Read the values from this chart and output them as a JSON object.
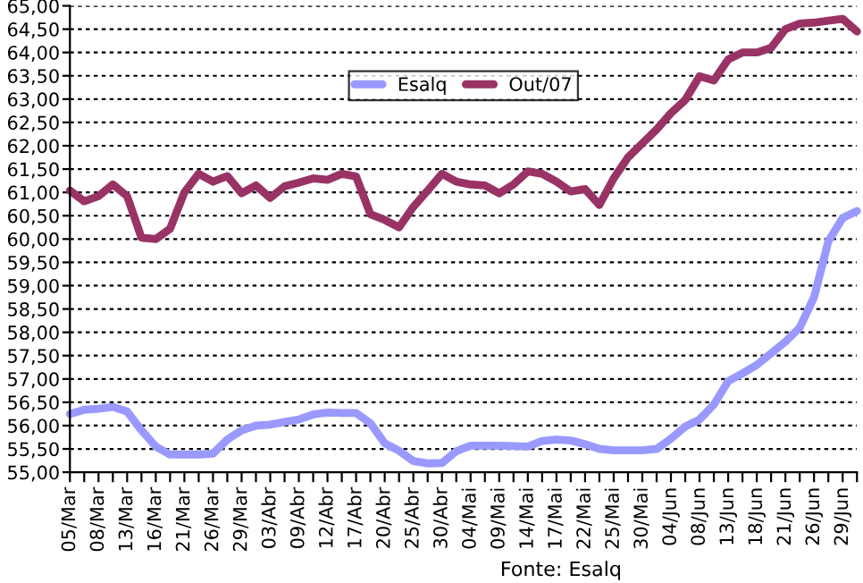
{
  "chart_data": {
    "type": "line",
    "categories": [
      "05/Mar",
      null,
      "08/Mar",
      null,
      "13/Mar",
      null,
      "16/Mar",
      null,
      "21/Mar",
      null,
      "26/Mar",
      null,
      "29/Mar",
      null,
      "03/Abr",
      null,
      "09/Abr",
      null,
      "12/Abr",
      null,
      "17/Abr",
      null,
      "20/Abr",
      null,
      "25/Abr",
      null,
      "30/Abr",
      null,
      "04/Mai",
      null,
      "09/Mai",
      null,
      "14/Mai",
      null,
      "17/Mai",
      null,
      "22/Mai",
      null,
      "25/Mai",
      null,
      "30/Mai",
      null,
      "04/Jun",
      null,
      "08/Jun",
      null,
      "13/Jun",
      null,
      "18/Jun",
      null,
      "21/Jun",
      null,
      "26/Jun",
      null,
      "29/Jun",
      null
    ],
    "series": [
      {
        "name": "Esalq",
        "color": "#9999ff",
        "values": [
          56.25,
          56.34,
          56.36,
          56.4,
          56.3,
          55.9,
          55.55,
          55.38,
          55.38,
          55.38,
          55.4,
          55.7,
          55.9,
          56.0,
          56.02,
          56.08,
          56.13,
          56.24,
          56.28,
          56.27,
          56.27,
          56.05,
          55.62,
          55.46,
          55.24,
          55.19,
          55.2,
          55.45,
          55.57,
          55.57,
          55.57,
          55.56,
          55.55,
          55.67,
          55.7,
          55.68,
          55.6,
          55.5,
          55.47,
          55.47,
          55.47,
          55.5,
          55.72,
          55.98,
          56.13,
          56.45,
          56.95,
          57.12,
          57.3,
          57.55,
          57.8,
          58.1,
          58.75,
          59.95,
          60.45,
          60.6
        ]
      },
      {
        "name": "Out/07",
        "color": "#993366",
        "values": [
          61.04,
          60.81,
          60.92,
          61.17,
          60.92,
          60.03,
          60.0,
          60.22,
          61.0,
          61.4,
          61.23,
          61.35,
          60.98,
          61.15,
          60.88,
          61.13,
          61.21,
          61.3,
          61.27,
          61.4,
          61.34,
          60.53,
          60.41,
          60.25,
          60.69,
          61.04,
          61.4,
          61.23,
          61.17,
          61.15,
          60.98,
          61.17,
          61.45,
          61.4,
          61.23,
          61.02,
          61.07,
          60.73,
          61.3,
          61.75,
          62.05,
          62.35,
          62.7,
          62.98,
          63.49,
          63.4,
          63.85,
          64.0,
          64.0,
          64.1,
          64.5,
          64.62,
          64.64,
          64.68,
          64.72,
          64.45
        ]
      }
    ],
    "ylim": [
      55,
      65
    ],
    "yticks": [
      {
        "value": 55,
        "label": "55,00"
      },
      {
        "value": 55.5,
        "label": "55,50"
      },
      {
        "value": 56,
        "label": "56,00"
      },
      {
        "value": 56.5,
        "label": "56,50"
      },
      {
        "value": 57,
        "label": "57,00"
      },
      {
        "value": 57.5,
        "label": "57,50"
      },
      {
        "value": 58,
        "label": "58,00"
      },
      {
        "value": 58.5,
        "label": "58,50"
      },
      {
        "value": 59,
        "label": "59,00"
      },
      {
        "value": 59.5,
        "label": "59,50"
      },
      {
        "value": 60,
        "label": "60,00"
      },
      {
        "value": 60.5,
        "label": "60,50"
      },
      {
        "value": 61,
        "label": "61,00"
      },
      {
        "value": 61.5,
        "label": "61,50"
      },
      {
        "value": 62,
        "label": "62,00"
      },
      {
        "value": 62.5,
        "label": "62,50"
      },
      {
        "value": 63,
        "label": "63,00"
      },
      {
        "value": 63.5,
        "label": "63,50"
      },
      {
        "value": 64,
        "label": "64,00"
      },
      {
        "value": 64.5,
        "label": "64,50"
      },
      {
        "value": 65,
        "label": "65,00"
      }
    ],
    "grid": "y",
    "legend": "top",
    "line_style": "solid",
    "marker": "none",
    "annotations": [
      "Fonte: Esalq"
    ]
  }
}
